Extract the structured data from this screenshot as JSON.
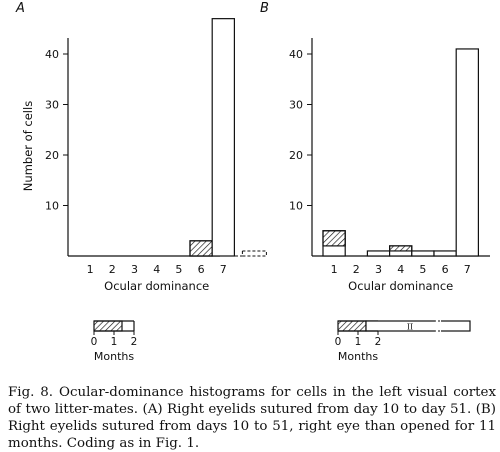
{
  "chart_data": [
    {
      "type": "bar",
      "panel_label": "A",
      "categories": [
        "1",
        "2",
        "3",
        "4",
        "5",
        "6",
        "7"
      ],
      "series": [
        {
          "values": [
            0,
            0,
            0,
            0,
            0,
            3,
            47
          ]
        }
      ],
      "hatched_portion": [
        0,
        0,
        0,
        0,
        0,
        3,
        0
      ],
      "extra_dashed_bar": {
        "value": 1
      },
      "xlabel": "Ocular dominance",
      "ylabel": "Number of cells",
      "yticks": [
        "10",
        "20",
        "30",
        "40"
      ],
      "ylim": [
        0,
        47
      ],
      "grid": false,
      "timeline": {
        "label": "Months",
        "ticks": [
          "0",
          "1",
          "2"
        ],
        "hatched_months": [
          0,
          1.4
        ],
        "open_bar": false,
        "open_bar_text": ""
      }
    },
    {
      "type": "bar",
      "panel_label": "B",
      "categories": [
        "1",
        "2",
        "3",
        "4",
        "5",
        "6",
        "7"
      ],
      "series": [
        {
          "values": [
            5,
            0,
            1,
            2,
            1,
            1,
            41
          ]
        }
      ],
      "hatched_portion": [
        3,
        0,
        0,
        1,
        0,
        0,
        0
      ],
      "xlabel": "Ocular dominance",
      "ylabel": "",
      "yticks": [
        "10",
        "20",
        "30",
        "40"
      ],
      "ylim": [
        0,
        47
      ],
      "grid": false,
      "timeline": {
        "label": "Months",
        "ticks": [
          "0",
          "1",
          "2"
        ],
        "hatched_months": [
          0,
          1.4
        ],
        "open_bar": true,
        "open_bar_text": "II"
      }
    }
  ],
  "caption": {
    "label": "Fig. 8.",
    "text": "Ocular-dominance histograms for cells in the left visual cortex of two litter-mates. (A) Right eyelids sutured from day 10 to day 51. (B) Right eyelids sutured from days 10 to 51, right eye than opened for 11 months. Coding as in Fig. 1."
  },
  "colors": {
    "ink": "#111111",
    "paper": "#ffffff"
  }
}
